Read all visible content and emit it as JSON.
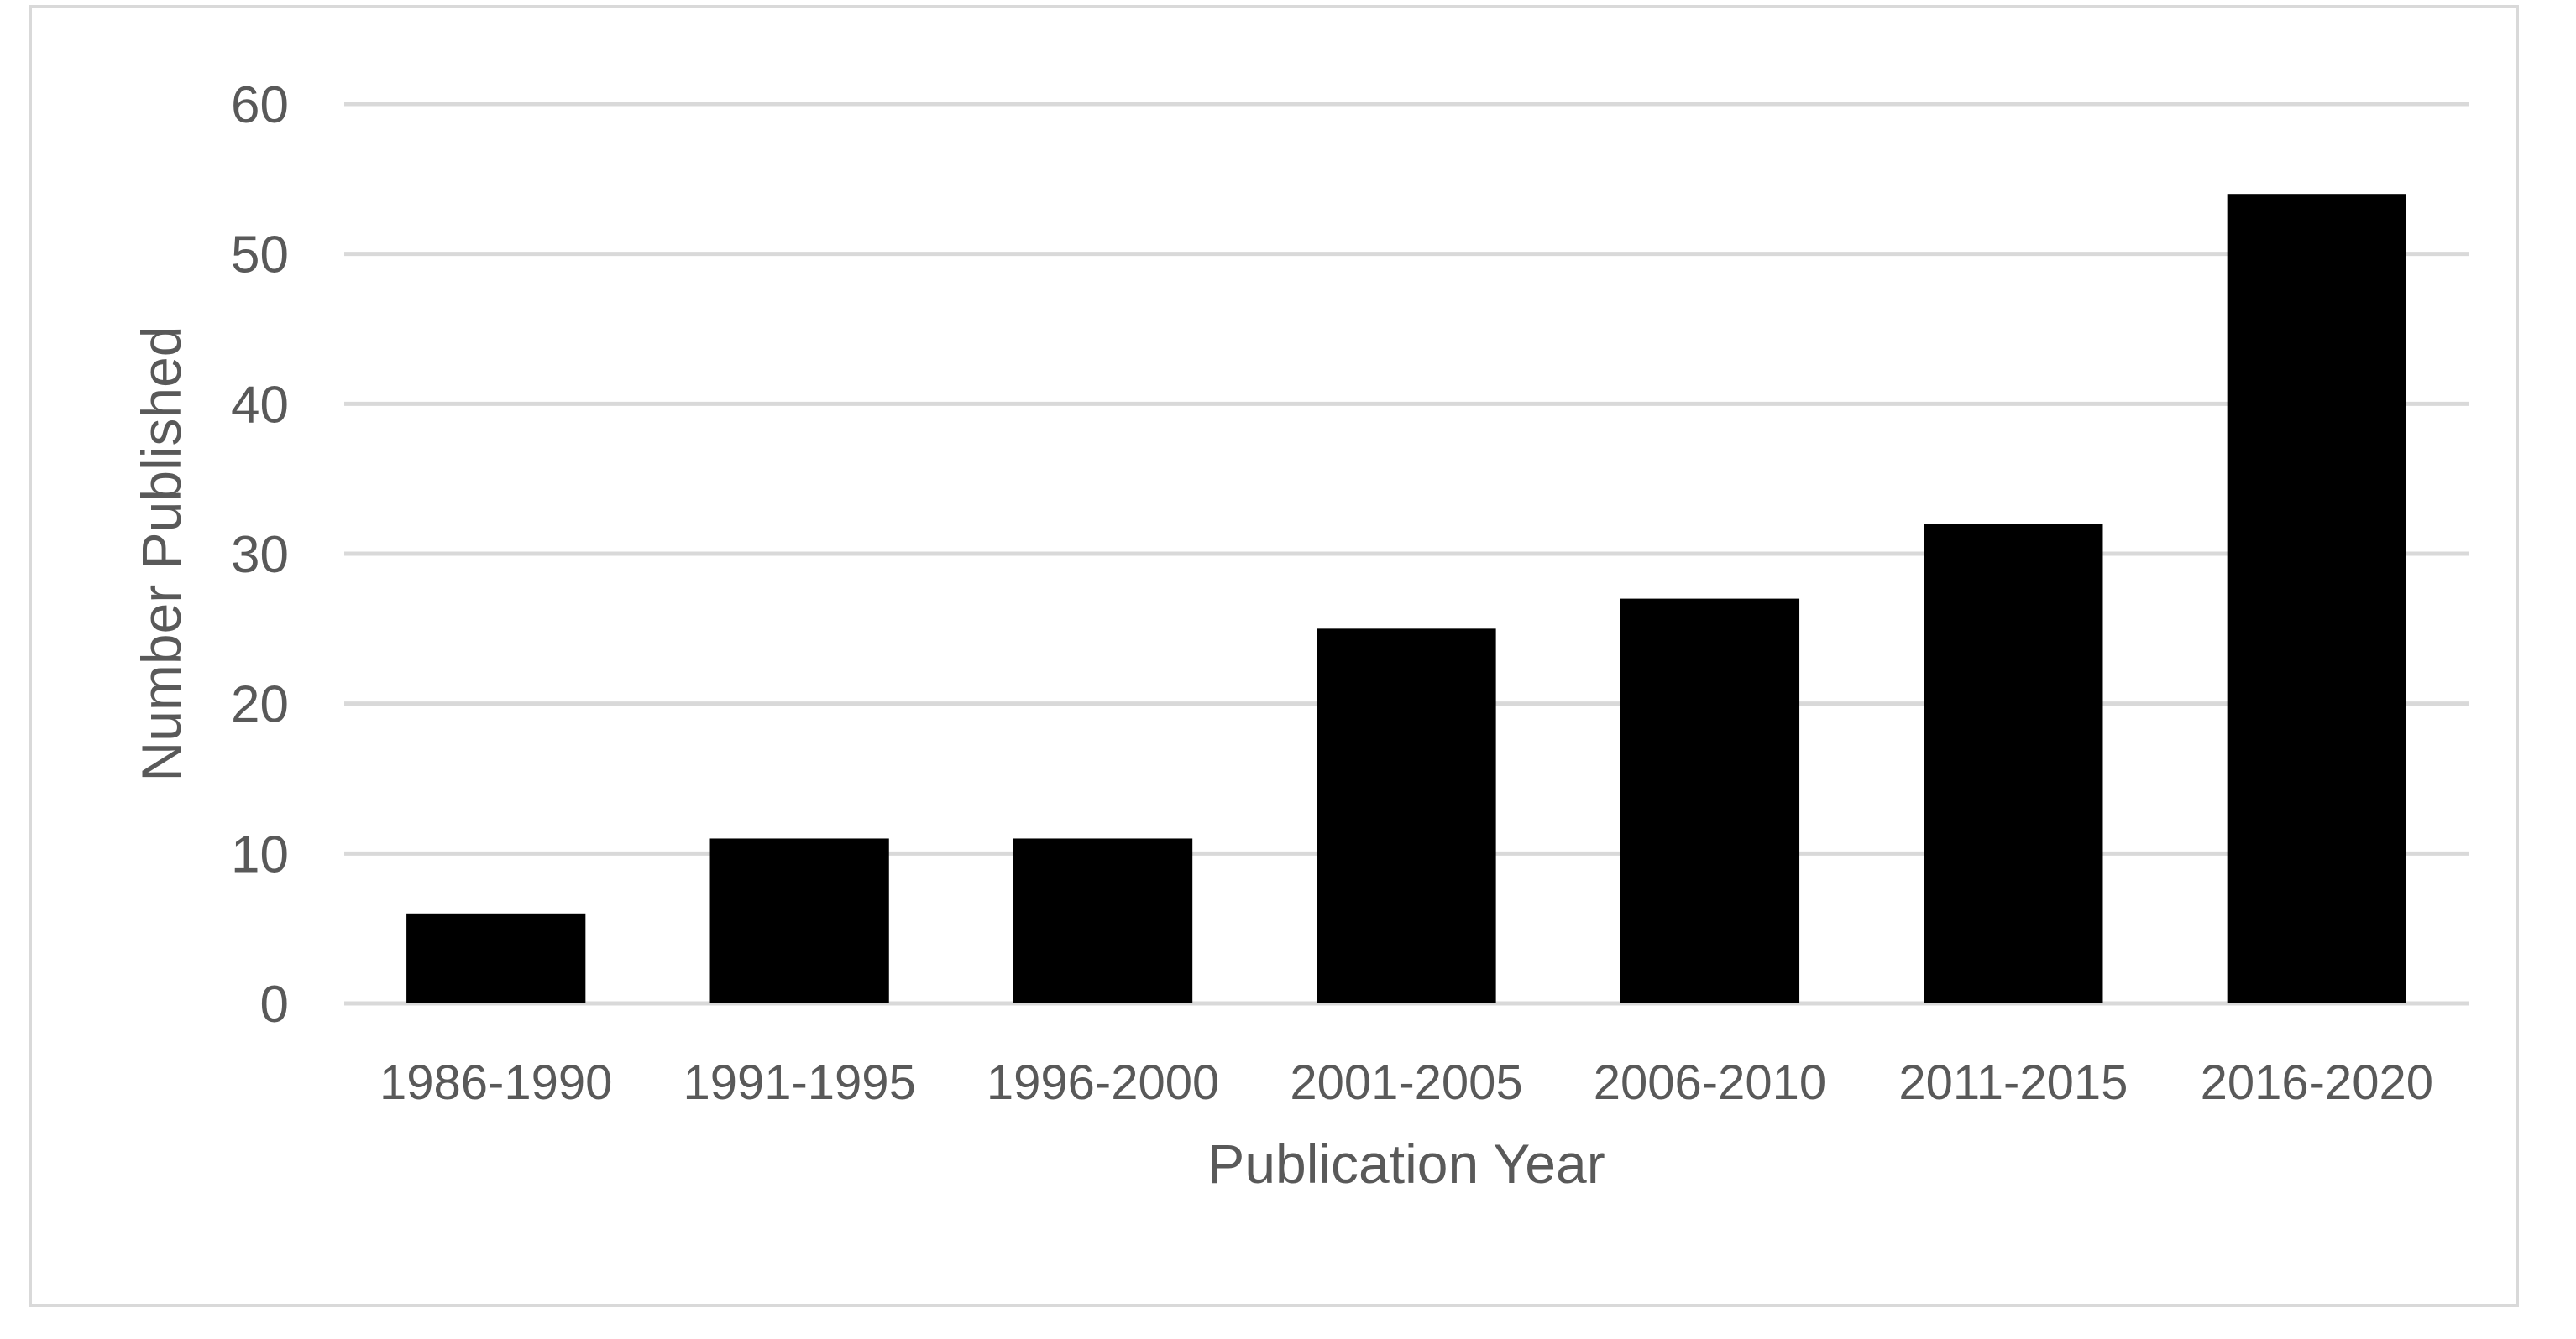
{
  "chart_data": {
    "type": "bar",
    "title": "",
    "xlabel": "Publication Year",
    "ylabel": "Number Published",
    "categories": [
      "1986-1990",
      "1991-1995",
      "1996-2000",
      "2001-2005",
      "2006-2010",
      "2011-2015",
      "2016-2020"
    ],
    "values": [
      6,
      11,
      11,
      25,
      27,
      32,
      54
    ],
    "ylim": [
      0,
      60
    ],
    "yticks": [
      0,
      10,
      20,
      30,
      40,
      50,
      60
    ],
    "grid": true,
    "legend": "none",
    "colors": {
      "bar": "#000000",
      "grid": "#d9d9d9",
      "text": "#595959",
      "frame": "#d9d9d9"
    }
  }
}
